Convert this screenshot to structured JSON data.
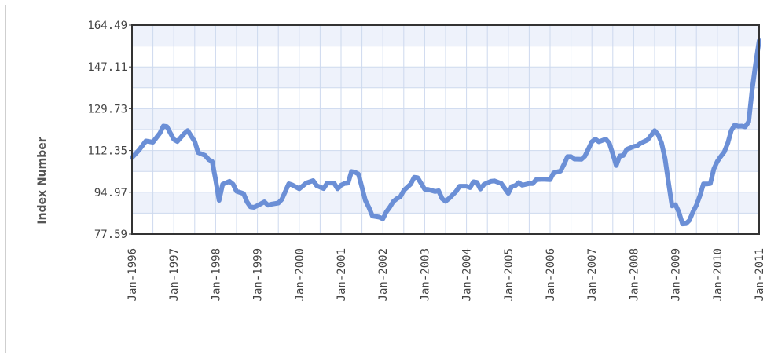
{
  "chart_data": {
    "type": "line",
    "title": "",
    "xlabel": "",
    "ylabel": "Index Number",
    "ylim": [
      77.59,
      164.49
    ],
    "y_ticks": [
      "77.59",
      "94.97",
      "112.35",
      "129.73",
      "147.11",
      "164.49"
    ],
    "x_ticks": [
      "Jan-1996",
      "Jan-1997",
      "Jan-1998",
      "Jan-1999",
      "Jan-2000",
      "Jan-2001",
      "Jan-2002",
      "Jan-2003",
      "Jan-2004",
      "Jan-2005",
      "Jan-2006",
      "Jan-2007",
      "Jan-2008",
      "Jan-2009",
      "Jan-2010",
      "Jan-2011"
    ],
    "xlim": [
      "1996-01",
      "2011-01"
    ],
    "grid": true,
    "colors": {
      "line": "#6b8fd6",
      "plot_band_a": "#eef2fb",
      "plot_band_b": "#ffffff",
      "grid": "#cdd9ee",
      "border": "#333333"
    },
    "series": [
      {
        "values": [
          [
            "1996-01",
            109.4
          ],
          [
            "1996-03",
            112.5
          ],
          [
            "1996-05",
            116.3
          ],
          [
            "1996-07",
            115.8
          ],
          [
            "1996-09",
            119.6
          ],
          [
            "1996-10",
            122.5
          ],
          [
            "1996-11",
            122.3
          ],
          [
            "1997-01",
            117.0
          ],
          [
            "1997-02",
            116.1
          ],
          [
            "1997-04",
            119.4
          ],
          [
            "1997-05",
            120.6
          ],
          [
            "1997-07",
            116.1
          ],
          [
            "1997-08",
            111.5
          ],
          [
            "1997-10",
            110.3
          ],
          [
            "1997-11",
            108.6
          ],
          [
            "1997-12",
            107.8
          ],
          [
            "1998-01",
            100.2
          ],
          [
            "1998-02",
            91.6
          ],
          [
            "1998-03",
            98.3
          ],
          [
            "1998-05",
            99.5
          ],
          [
            "1998-06",
            98.3
          ],
          [
            "1998-07",
            95.4
          ],
          [
            "1998-09",
            94.4
          ],
          [
            "1998-10",
            91.0
          ],
          [
            "1998-11",
            88.9
          ],
          [
            "1998-12",
            88.7
          ],
          [
            "1999-01",
            89.4
          ],
          [
            "1999-03",
            91.0
          ],
          [
            "1999-04",
            89.6
          ],
          [
            "1999-05",
            90.0
          ],
          [
            "1999-07",
            90.5
          ],
          [
            "1999-08",
            92.0
          ],
          [
            "1999-09",
            95.3
          ],
          [
            "1999-10",
            98.5
          ],
          [
            "1999-11",
            98.0
          ],
          [
            "2000-01",
            96.4
          ],
          [
            "2000-03",
            98.8
          ],
          [
            "2000-05",
            99.8
          ],
          [
            "2000-06",
            97.7
          ],
          [
            "2000-08",
            96.5
          ],
          [
            "2000-09",
            98.8
          ],
          [
            "2000-11",
            98.8
          ],
          [
            "2000-12",
            96.4
          ],
          [
            "2001-01",
            97.9
          ],
          [
            "2001-02",
            98.6
          ],
          [
            "2001-03",
            98.8
          ],
          [
            "2001-04",
            103.6
          ],
          [
            "2001-05",
            103.3
          ],
          [
            "2001-06",
            102.5
          ],
          [
            "2001-07",
            97.0
          ],
          [
            "2001-08",
            91.5
          ],
          [
            "2001-09",
            88.6
          ],
          [
            "2001-10",
            85.1
          ],
          [
            "2001-12",
            84.6
          ],
          [
            "2002-01",
            83.9
          ],
          [
            "2002-02",
            86.8
          ],
          [
            "2002-03",
            88.8
          ],
          [
            "2002-04",
            91.1
          ],
          [
            "2002-05",
            92.3
          ],
          [
            "2002-06",
            93.1
          ],
          [
            "2002-07",
            95.7
          ],
          [
            "2002-09",
            98.4
          ],
          [
            "2002-10",
            101.2
          ],
          [
            "2002-11",
            101.0
          ],
          [
            "2003-01",
            96.2
          ],
          [
            "2003-02",
            96.1
          ],
          [
            "2003-04",
            95.3
          ],
          [
            "2003-05",
            95.6
          ],
          [
            "2003-06",
            92.3
          ],
          [
            "2003-07",
            91.2
          ],
          [
            "2003-08",
            92.4
          ],
          [
            "2003-10",
            95.3
          ],
          [
            "2003-11",
            97.5
          ],
          [
            "2004-01",
            97.5
          ],
          [
            "2004-02",
            96.9
          ],
          [
            "2004-03",
            99.3
          ],
          [
            "2004-04",
            99.1
          ],
          [
            "2004-05",
            96.3
          ],
          [
            "2004-06",
            98.2
          ],
          [
            "2004-08",
            99.5
          ],
          [
            "2004-09",
            99.7
          ],
          [
            "2004-11",
            98.6
          ],
          [
            "2005-01",
            94.5
          ],
          [
            "2005-02",
            97.4
          ],
          [
            "2005-03",
            97.7
          ],
          [
            "2005-04",
            99.0
          ],
          [
            "2005-05",
            97.9
          ],
          [
            "2005-07",
            98.6
          ],
          [
            "2005-08",
            98.6
          ],
          [
            "2005-09",
            100.2
          ],
          [
            "2005-11",
            100.4
          ],
          [
            "2006-01",
            100.2
          ],
          [
            "2006-02",
            103.0
          ],
          [
            "2006-04",
            103.8
          ],
          [
            "2006-05",
            106.6
          ],
          [
            "2006-06",
            109.8
          ],
          [
            "2006-07",
            109.8
          ],
          [
            "2006-08",
            108.8
          ],
          [
            "2006-10",
            108.7
          ],
          [
            "2006-11",
            110.0
          ],
          [
            "2007-01",
            116.0
          ],
          [
            "2007-02",
            117.1
          ],
          [
            "2007-03",
            116.0
          ],
          [
            "2007-05",
            117.1
          ],
          [
            "2007-06",
            115.4
          ],
          [
            "2007-07",
            110.9
          ],
          [
            "2007-08",
            106.1
          ],
          [
            "2007-09",
            110.1
          ],
          [
            "2007-10",
            110.3
          ],
          [
            "2007-11",
            112.8
          ],
          [
            "2008-01",
            114.0
          ],
          [
            "2008-02",
            114.3
          ],
          [
            "2008-03",
            115.4
          ],
          [
            "2008-05",
            116.8
          ],
          [
            "2008-06",
            118.7
          ],
          [
            "2008-07",
            120.6
          ],
          [
            "2008-08",
            119.0
          ],
          [
            "2008-09",
            115.4
          ],
          [
            "2008-10",
            109.0
          ],
          [
            "2008-11",
            99.0
          ],
          [
            "2008-12",
            89.3
          ],
          [
            "2009-01",
            89.8
          ],
          [
            "2009-02",
            86.6
          ],
          [
            "2009-03",
            81.8
          ],
          [
            "2009-04",
            81.9
          ],
          [
            "2009-05",
            83.3
          ],
          [
            "2009-06",
            86.8
          ],
          [
            "2009-07",
            89.6
          ],
          [
            "2009-08",
            93.5
          ],
          [
            "2009-09",
            98.4
          ],
          [
            "2009-10",
            98.4
          ],
          [
            "2009-11",
            98.6
          ],
          [
            "2009-12",
            104.7
          ],
          [
            "2010-01",
            107.8
          ],
          [
            "2010-02",
            109.9
          ],
          [
            "2010-03",
            111.8
          ],
          [
            "2010-04",
            115.4
          ],
          [
            "2010-05",
            120.6
          ],
          [
            "2010-06",
            123.0
          ],
          [
            "2010-07",
            122.4
          ],
          [
            "2010-08",
            122.5
          ],
          [
            "2010-09",
            122.2
          ],
          [
            "2010-10",
            124.3
          ],
          [
            "2010-11",
            137.6
          ],
          [
            "2010-12",
            148.5
          ],
          [
            "2011-01",
            158.0
          ]
        ]
      }
    ]
  }
}
